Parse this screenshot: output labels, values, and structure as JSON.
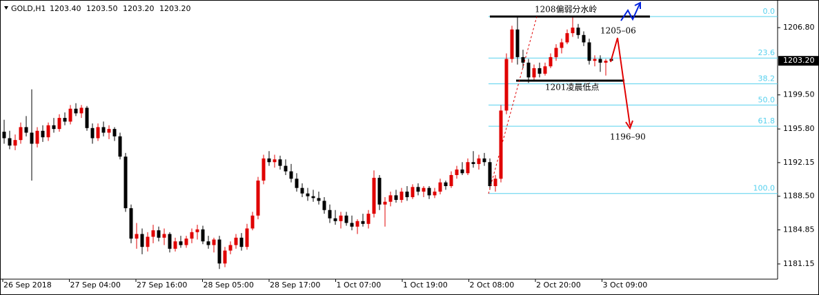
{
  "chart_data": {
    "type": "candlestick",
    "title": "GOLD,H1",
    "header_values": [
      "1203.40",
      "1203.50",
      "1203.20",
      "1203.20"
    ],
    "up_color": "#e00000",
    "down_color": "#000000",
    "ylim": [
      1179.5,
      1209.8
    ],
    "yticks": [
      {
        "value": 1206.8,
        "label": "1206.80"
      },
      {
        "value": 1199.5,
        "label": "1199.50"
      },
      {
        "value": 1195.8,
        "label": "1195.80"
      },
      {
        "value": 1192.15,
        "label": "1192.15"
      },
      {
        "value": 1188.5,
        "label": "1188.50"
      },
      {
        "value": 1184.85,
        "label": "1184.85"
      },
      {
        "value": 1181.15,
        "label": "1181.15"
      }
    ],
    "current_price": {
      "value": 1203.2,
      "label": "1203.20"
    },
    "x_labels": [
      "26 Sep 2018",
      "27 Sep 04:00",
      "27 Sep 16:00",
      "28 Sep 05:00",
      "28 Sep 17:00",
      "1 Oct 07:00",
      "1 Oct 19:00",
      "2 Oct 08:00",
      "2 Oct 20:00",
      "3 Oct 09:00"
    ],
    "fib_levels": [
      {
        "value": 1208.0,
        "label": "0.0"
      },
      {
        "value": 1203.5,
        "label": "23.6"
      },
      {
        "value": 1200.7,
        "label": "38.2"
      },
      {
        "value": 1198.4,
        "label": "50.0"
      },
      {
        "value": 1196.1,
        "label": "61.8"
      },
      {
        "value": 1188.8,
        "label": "100.0"
      }
    ],
    "fib_color": "#55d0ee",
    "annotations": [
      "1208偏弱分水岭",
      "1205–06",
      "1201凌晨低点",
      "1196–90"
    ],
    "ohlc": [
      [
        1195.5,
        1196.8,
        1194.2,
        1194.8
      ],
      [
        1194.8,
        1195.6,
        1193.6,
        1194.0
      ],
      [
        1194.0,
        1195.2,
        1193.5,
        1194.6
      ],
      [
        1194.6,
        1196.5,
        1194.2,
        1196.0
      ],
      [
        1196.0,
        1197.2,
        1195.0,
        1195.4
      ],
      [
        1195.4,
        1200.1,
        1190.2,
        1194.2
      ],
      [
        1194.2,
        1196.0,
        1193.8,
        1195.6
      ],
      [
        1195.6,
        1196.2,
        1194.4,
        1194.9
      ],
      [
        1194.9,
        1196.5,
        1194.5,
        1196.2
      ],
      [
        1196.2,
        1197.0,
        1195.4,
        1195.8
      ],
      [
        1195.8,
        1197.4,
        1195.5,
        1197.0
      ],
      [
        1197.0,
        1197.6,
        1196.2,
        1196.6
      ],
      [
        1196.6,
        1198.4,
        1196.3,
        1198.0
      ],
      [
        1198.0,
        1198.6,
        1197.2,
        1197.5
      ],
      [
        1197.5,
        1198.4,
        1197.0,
        1198.1
      ],
      [
        1198.1,
        1198.3,
        1195.6,
        1195.9
      ],
      [
        1195.9,
        1196.4,
        1194.2,
        1194.8
      ],
      [
        1194.8,
        1196.4,
        1194.5,
        1196.0
      ],
      [
        1196.0,
        1196.6,
        1195.0,
        1195.4
      ],
      [
        1195.4,
        1196.2,
        1194.7,
        1195.8
      ],
      [
        1195.8,
        1196.0,
        1194.5,
        1195.0
      ],
      [
        1195.0,
        1195.4,
        1192.5,
        1192.8
      ],
      [
        1192.8,
        1193.2,
        1186.8,
        1187.2
      ],
      [
        1187.2,
        1187.6,
        1183.4,
        1183.9
      ],
      [
        1183.9,
        1185.6,
        1182.8,
        1184.4
      ],
      [
        1184.4,
        1185.0,
        1182.2,
        1183.0
      ],
      [
        1183.0,
        1184.6,
        1182.5,
        1184.1
      ],
      [
        1184.1,
        1185.4,
        1183.4,
        1184.8
      ],
      [
        1184.8,
        1185.2,
        1183.6,
        1184.0
      ],
      [
        1184.0,
        1185.0,
        1183.2,
        1184.4
      ],
      [
        1184.4,
        1184.6,
        1182.4,
        1182.8
      ],
      [
        1182.8,
        1184.0,
        1182.5,
        1183.6
      ],
      [
        1183.6,
        1184.2,
        1182.9,
        1183.2
      ],
      [
        1183.2,
        1184.2,
        1182.9,
        1183.9
      ],
      [
        1183.9,
        1185.0,
        1183.4,
        1184.6
      ],
      [
        1184.6,
        1185.4,
        1183.8,
        1184.9
      ],
      [
        1184.9,
        1185.3,
        1183.3,
        1183.6
      ],
      [
        1183.6,
        1184.2,
        1182.8,
        1183.2
      ],
      [
        1183.2,
        1184.0,
        1182.4,
        1183.8
      ],
      [
        1183.8,
        1184.2,
        1180.6,
        1181.2
      ],
      [
        1181.2,
        1183.0,
        1180.8,
        1182.6
      ],
      [
        1182.6,
        1183.6,
        1182.2,
        1183.2
      ],
      [
        1183.2,
        1184.4,
        1182.8,
        1184.0
      ],
      [
        1184.0,
        1184.5,
        1182.6,
        1183.0
      ],
      [
        1183.0,
        1185.5,
        1182.7,
        1185.0
      ],
      [
        1185.0,
        1186.8,
        1184.8,
        1186.4
      ],
      [
        1186.4,
        1190.6,
        1186.0,
        1190.2
      ],
      [
        1190.2,
        1193.0,
        1189.8,
        1192.6
      ],
      [
        1192.6,
        1193.4,
        1191.8,
        1192.2
      ],
      [
        1192.2,
        1193.0,
        1191.6,
        1192.5
      ],
      [
        1192.5,
        1192.9,
        1191.4,
        1191.8
      ],
      [
        1191.8,
        1192.5,
        1190.8,
        1191.2
      ],
      [
        1191.2,
        1192.0,
        1190.0,
        1190.4
      ],
      [
        1190.4,
        1191.0,
        1189.0,
        1189.4
      ],
      [
        1189.4,
        1189.9,
        1188.4,
        1188.8
      ],
      [
        1188.8,
        1189.4,
        1188.0,
        1188.5
      ],
      [
        1188.5,
        1189.2,
        1187.9,
        1188.3
      ],
      [
        1188.3,
        1189.0,
        1187.6,
        1188.0
      ],
      [
        1188.0,
        1188.4,
        1186.6,
        1187.0
      ],
      [
        1187.0,
        1187.6,
        1185.6,
        1186.1
      ],
      [
        1186.1,
        1187.0,
        1185.4,
        1185.8
      ],
      [
        1185.8,
        1186.8,
        1185.0,
        1186.4
      ],
      [
        1186.4,
        1186.8,
        1185.3,
        1185.6
      ],
      [
        1185.6,
        1186.4,
        1184.8,
        1185.2
      ],
      [
        1185.2,
        1186.0,
        1184.4,
        1185.8
      ],
      [
        1185.8,
        1186.6,
        1185.2,
        1185.5
      ],
      [
        1185.5,
        1187.0,
        1185.0,
        1186.6
      ],
      [
        1186.6,
        1191.3,
        1186.2,
        1190.5
      ],
      [
        1190.5,
        1190.8,
        1187.0,
        1187.6
      ],
      [
        1187.6,
        1188.4,
        1185.2,
        1187.9
      ],
      [
        1187.9,
        1189.0,
        1187.4,
        1188.6
      ],
      [
        1188.6,
        1189.2,
        1187.8,
        1188.1
      ],
      [
        1188.1,
        1189.4,
        1187.8,
        1189.0
      ],
      [
        1189.0,
        1189.6,
        1188.0,
        1188.4
      ],
      [
        1188.4,
        1189.8,
        1188.2,
        1189.5
      ],
      [
        1189.5,
        1189.9,
        1188.6,
        1189.0
      ],
      [
        1189.0,
        1189.6,
        1188.4,
        1189.4
      ],
      [
        1189.4,
        1189.6,
        1188.2,
        1188.6
      ],
      [
        1188.6,
        1189.4,
        1188.3,
        1189.0
      ],
      [
        1189.0,
        1190.4,
        1188.7,
        1190.0
      ],
      [
        1190.0,
        1190.2,
        1189.2,
        1189.6
      ],
      [
        1189.6,
        1191.2,
        1189.4,
        1190.8
      ],
      [
        1190.8,
        1191.8,
        1190.4,
        1191.4
      ],
      [
        1191.4,
        1192.2,
        1190.8,
        1191.0
      ],
      [
        1191.0,
        1192.6,
        1190.8,
        1192.2
      ],
      [
        1192.2,
        1193.4,
        1191.6,
        1192.0
      ],
      [
        1192.0,
        1193.0,
        1191.4,
        1192.6
      ],
      [
        1192.6,
        1193.2,
        1191.8,
        1192.2
      ],
      [
        1192.2,
        1192.6,
        1189.2,
        1189.6
      ],
      [
        1189.6,
        1190.8,
        1189.0,
        1190.4
      ],
      [
        1190.4,
        1198.4,
        1190.0,
        1197.8
      ],
      [
        1197.8,
        1204.0,
        1197.4,
        1203.4
      ],
      [
        1203.4,
        1207.0,
        1203.0,
        1206.6
      ],
      [
        1206.6,
        1208.0,
        1202.8,
        1203.6
      ],
      [
        1203.6,
        1204.4,
        1202.4,
        1203.0
      ],
      [
        1203.0,
        1203.4,
        1200.8,
        1201.4
      ],
      [
        1201.4,
        1202.8,
        1201.0,
        1202.4
      ],
      [
        1202.4,
        1203.0,
        1201.4,
        1201.8
      ],
      [
        1201.8,
        1203.0,
        1201.6,
        1202.6
      ],
      [
        1202.6,
        1204.0,
        1202.4,
        1203.6
      ],
      [
        1203.6,
        1205.0,
        1203.2,
        1204.6
      ],
      [
        1204.6,
        1205.6,
        1204.0,
        1205.2
      ],
      [
        1205.2,
        1206.6,
        1205.0,
        1206.2
      ],
      [
        1206.2,
        1208.0,
        1205.8,
        1206.8
      ],
      [
        1206.8,
        1207.2,
        1205.6,
        1206.0
      ],
      [
        1206.0,
        1206.4,
        1204.8,
        1205.2
      ],
      [
        1205.2,
        1205.6,
        1202.8,
        1203.2
      ],
      [
        1203.2,
        1203.8,
        1202.6,
        1203.4
      ],
      [
        1203.4,
        1203.8,
        1202.0,
        1203.0
      ],
      [
        1203.0,
        1203.4,
        1201.6,
        1203.2
      ],
      [
        1203.4,
        1203.5,
        1203.2,
        1203.2
      ]
    ]
  }
}
